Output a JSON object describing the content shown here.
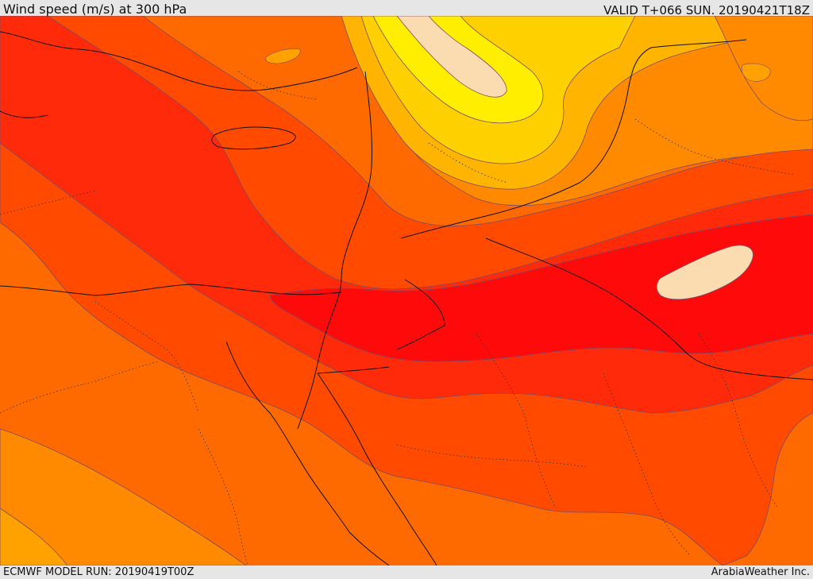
{
  "header": {
    "title": "Wind speed (m/s) at 300 hPa",
    "valid": "VALID T+066 SUN. 20190421T18Z"
  },
  "footer": {
    "model_run": "ECMWF MODEL RUN: 20190419T00Z",
    "brand": "ArabiaWeather Inc."
  },
  "colors": {
    "band_1": "#ffa200",
    "band_2": "#ff8a00",
    "band_3": "#ff6a00",
    "band_4": "#ff4a00",
    "band_5": "#ff2a0a",
    "band_6": "#ff0a0a",
    "band_max": "#fbdcb0",
    "band_y1": "#ffb400",
    "band_y2": "#ffd000",
    "band_y3": "#ffee00",
    "contour": "#7a4a6a",
    "coast": "#111111"
  }
}
